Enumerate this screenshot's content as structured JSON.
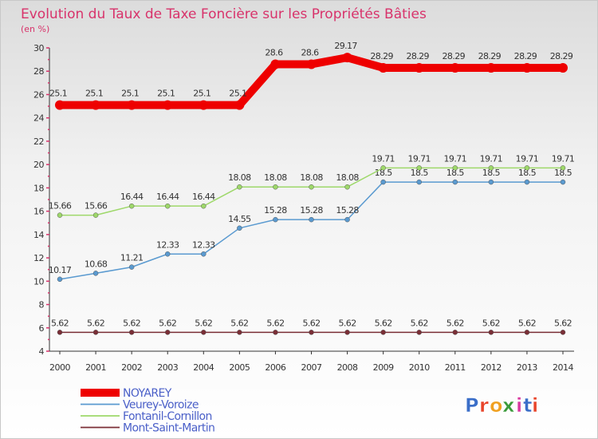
{
  "chart_data": {
    "type": "line",
    "title": "Evolution du Taux de Taxe Foncière sur les Propriétés Bâties",
    "subtitle": "(en %)",
    "xlabel": "",
    "ylabel": "(en %)",
    "ylim": [
      4,
      30
    ],
    "yticks": [
      4,
      6,
      8,
      10,
      12,
      14,
      16,
      18,
      20,
      22,
      24,
      26,
      28,
      30
    ],
    "x": [
      "2000",
      "2001",
      "2002",
      "2003",
      "2004",
      "2005",
      "2006",
      "2007",
      "2008",
      "2009",
      "2010",
      "2011",
      "2012",
      "2013",
      "2014"
    ],
    "series": [
      {
        "name": "NOYAREY",
        "color": "#ee0000",
        "highlight": true,
        "values": [
          25.1,
          25.1,
          25.1,
          25.1,
          25.1,
          25.1,
          28.6,
          28.6,
          29.17,
          28.29,
          28.29,
          28.29,
          28.29,
          28.29,
          28.29
        ],
        "labels": [
          "25.1",
          "25.1",
          "25.1",
          "25.1",
          "25.1",
          "25.1",
          "28.6",
          "28.6",
          "29.17",
          "28.29",
          "28.29",
          "28.29",
          "28.29",
          "28.29",
          "28.29"
        ]
      },
      {
        "name": "Veurey-Voroize",
        "color": "#5a9ad0",
        "highlight": false,
        "values": [
          10.17,
          10.68,
          11.21,
          12.33,
          12.33,
          14.55,
          15.28,
          15.28,
          15.28,
          18.5,
          18.5,
          18.5,
          18.5,
          18.5,
          18.5
        ],
        "labels": [
          "10.17",
          "10.68",
          "11.21",
          "12.33",
          "12.33",
          "14.55",
          "15.28",
          "15.28",
          "15.28",
          "18.5",
          "18.5",
          "18.5",
          "18.5",
          "18.5",
          "18.5"
        ]
      },
      {
        "name": "Fontanil-Cornillon",
        "color": "#9ed86a",
        "highlight": false,
        "values": [
          15.66,
          15.66,
          16.44,
          16.44,
          16.44,
          18.08,
          18.08,
          18.08,
          18.08,
          19.71,
          19.71,
          19.71,
          19.71,
          19.71,
          19.71
        ],
        "labels": [
          "15.66",
          "15.66",
          "16.44",
          "16.44",
          "16.44",
          "18.08",
          "18.08",
          "18.08",
          "18.08",
          "19.71",
          "19.71",
          "19.71",
          "19.71",
          "19.71",
          "19.71"
        ]
      },
      {
        "name": "Mont-Saint-Martin",
        "color": "#7a2e36",
        "highlight": false,
        "values": [
          5.62,
          5.62,
          5.62,
          5.62,
          5.62,
          5.62,
          5.62,
          5.62,
          5.62,
          5.62,
          5.62,
          5.62,
          5.62,
          5.62,
          5.62
        ],
        "labels": [
          "5.62",
          "5.62",
          "5.62",
          "5.62",
          "5.62",
          "5.62",
          "5.62",
          "5.62",
          "5.62",
          "5.62",
          "5.62",
          "5.62",
          "5.62",
          "5.62",
          "5.62"
        ]
      }
    ],
    "legend": "bottom-left"
  },
  "logo": {
    "text": "Proxiti",
    "letters": [
      "P",
      "r",
      "o",
      "x",
      "i",
      "t",
      "i"
    ],
    "colors": [
      "#3a6ec8",
      "#e8442a",
      "#f0a020",
      "#3a9a3a",
      "#d83aa0",
      "#3a6ec8",
      "#e8442a"
    ]
  }
}
